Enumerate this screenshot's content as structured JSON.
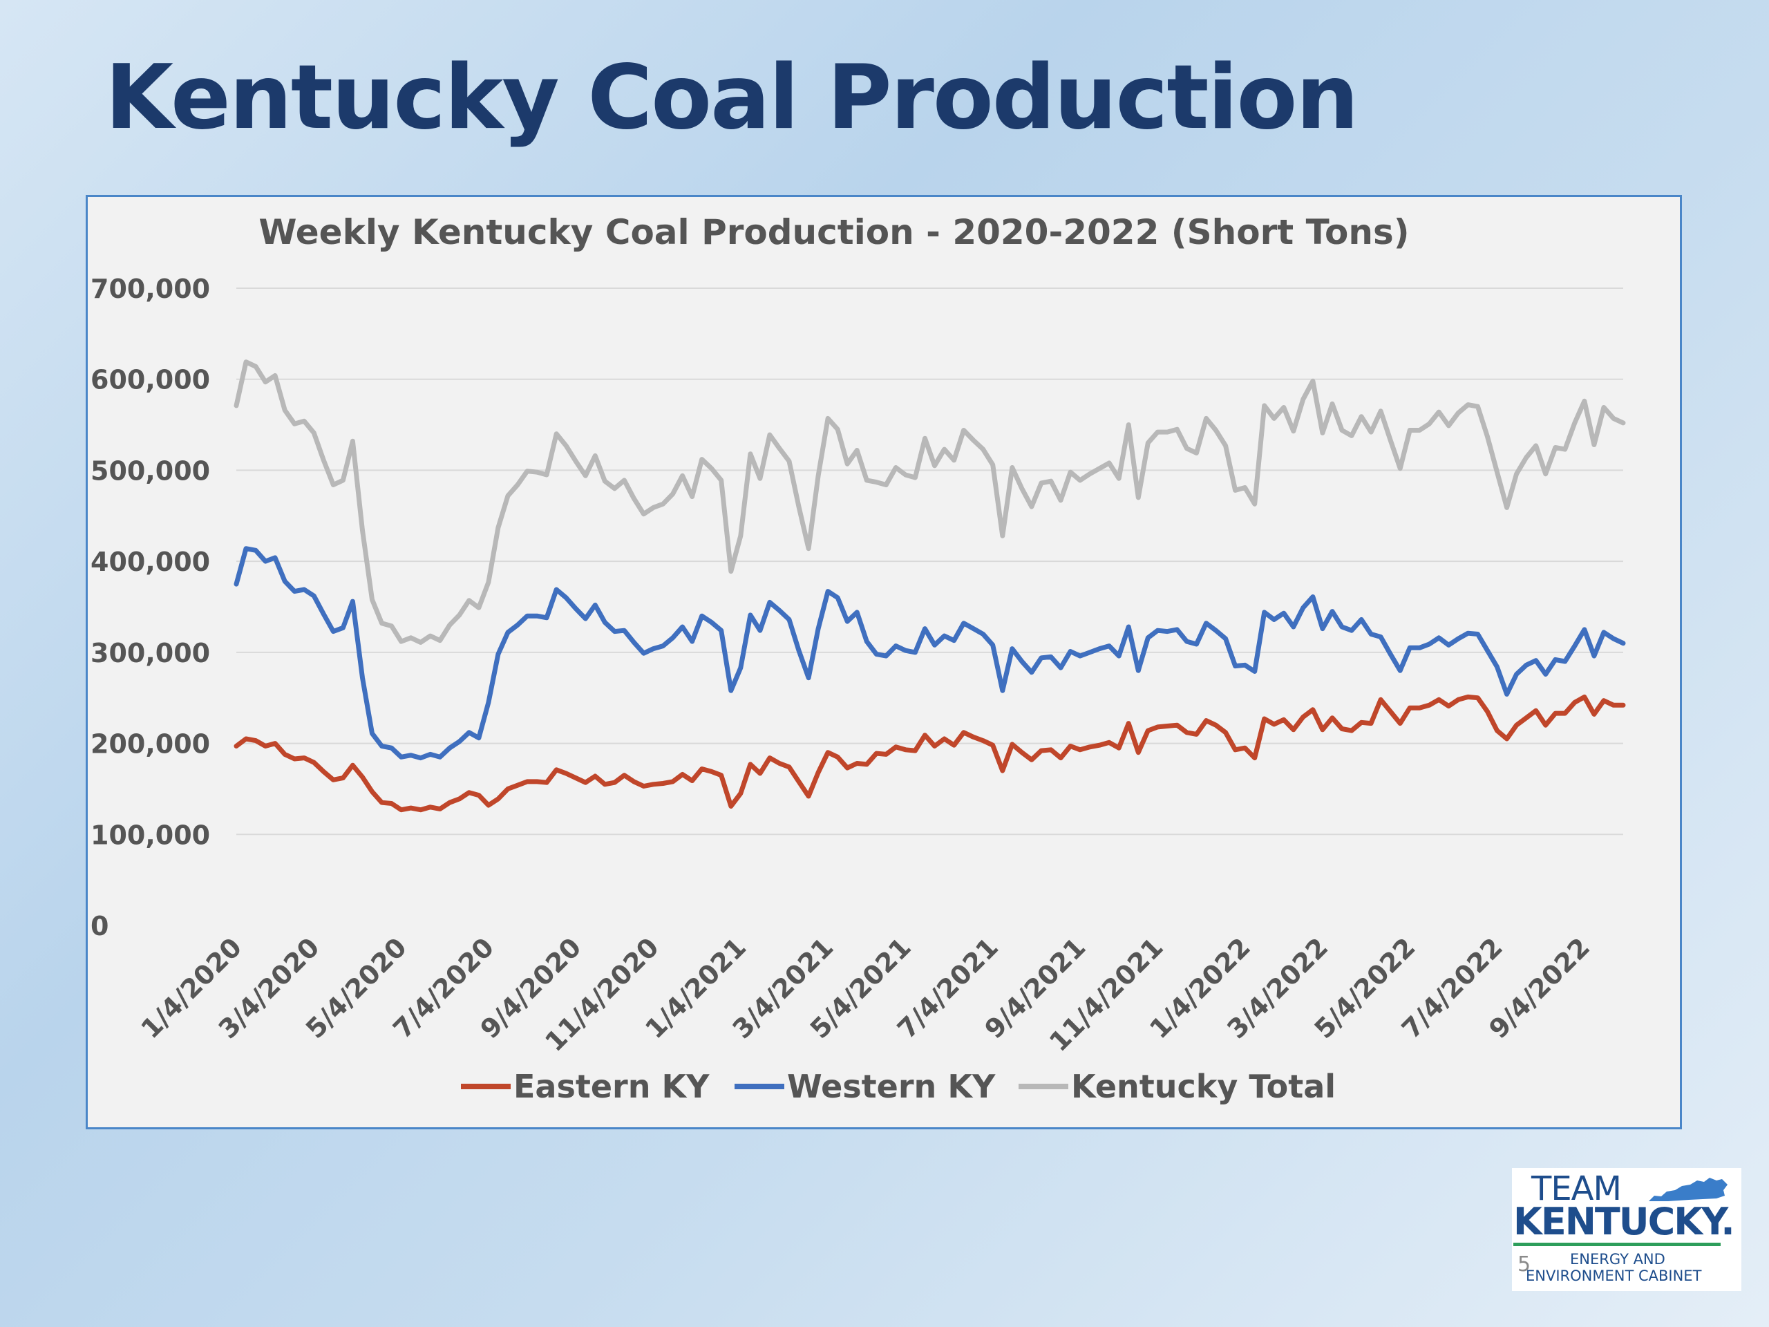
{
  "slide": {
    "title": "Kentucky Coal Production",
    "page_number": "5",
    "logo": {
      "line1": "TEAM",
      "line2": "KENTUCKY.",
      "line3": "ENERGY AND",
      "line4": "ENVIRONMENT CABINET"
    }
  },
  "colors": {
    "eastern": "#c0462a",
    "western": "#3f6fbf",
    "total": "#b8b8b8",
    "grid": "#d9d9d9",
    "frame": "#4a86c8",
    "title": "#1c3a6b"
  },
  "chart_data": {
    "type": "line",
    "title": "Weekly Kentucky Coal Production - 2020-2022 (Short Tons)",
    "ylim": [
      0,
      700000
    ],
    "yticks": [
      0,
      100000,
      200000,
      300000,
      400000,
      500000,
      600000,
      700000
    ],
    "ytick_labels": [
      "0",
      "100,000",
      "200,000",
      "300,000",
      "400,000",
      "500,000",
      "600,000",
      "700,000"
    ],
    "grid": true,
    "legend": "bottom",
    "x_tick_labels": [
      "1/4/2020",
      "3/4/2020",
      "5/4/2020",
      "7/4/2020",
      "9/4/2020",
      "11/4/2020",
      "1/4/2021",
      "3/4/2021",
      "5/4/2021",
      "7/4/2021",
      "9/4/2021",
      "11/4/2021",
      "1/4/2022",
      "3/4/2022",
      "5/4/2022",
      "7/4/2022",
      "9/4/2022"
    ],
    "x_tick_week_index": [
      0,
      8,
      17,
      26,
      35,
      43,
      52,
      61,
      69,
      78,
      87,
      95,
      104,
      112,
      121,
      130,
      139
    ],
    "series": [
      {
        "name": "Eastern KY",
        "values": [
          197000,
          205000,
          203000,
          197000,
          200000,
          188000,
          183000,
          184000,
          179000,
          169000,
          160000,
          162000,
          176000,
          163000,
          147000,
          135000,
          134000,
          127000,
          129000,
          127000,
          130000,
          128000,
          135000,
          139000,
          146000,
          143000,
          132000,
          139000,
          150000,
          154000,
          158000,
          158000,
          157000,
          171000,
          167000,
          162000,
          157000,
          164000,
          155000,
          157000,
          165000,
          158000,
          153000,
          155000,
          156000,
          158000,
          166000,
          159000,
          172000,
          169000,
          165000,
          131000,
          145000,
          177000,
          167000,
          184000,
          178000,
          174000,
          158000,
          142000,
          168000,
          190000,
          185000,
          173000,
          178000,
          177000,
          189000,
          188000,
          196000,
          193000,
          192000,
          209000,
          197000,
          205000,
          198000,
          212000,
          207000,
          203000,
          198000,
          170000,
          199000,
          190000,
          182000,
          192000,
          193000,
          184000,
          197000,
          193000,
          196000,
          198000,
          201000,
          195000,
          222000,
          190000,
          214000,
          218000,
          219000,
          220000,
          212000,
          210000,
          225000,
          220000,
          212000,
          193000,
          195000,
          184000,
          227000,
          221000,
          226000,
          215000,
          229000,
          237000,
          215000,
          228000,
          216000,
          214000,
          223000,
          222000,
          248000,
          235000,
          222000,
          239000,
          239000,
          242000,
          248000,
          241000,
          248000,
          251000,
          250000,
          235000,
          214000,
          205000,
          220000,
          228000,
          236000,
          220000,
          233000,
          233000,
          245000,
          251000,
          232000,
          247000,
          242000,
          242000
        ]
      },
      {
        "name": "Western KY",
        "values": [
          375000,
          414000,
          412000,
          400000,
          404000,
          378000,
          367000,
          369000,
          362000,
          342000,
          323000,
          327000,
          356000,
          272000,
          211000,
          197000,
          195000,
          185000,
          187000,
          184000,
          188000,
          185000,
          195000,
          202000,
          212000,
          206000,
          245000,
          298000,
          322000,
          330000,
          340000,
          340000,
          338000,
          369000,
          360000,
          348000,
          337000,
          352000,
          333000,
          323000,
          324000,
          311000,
          299000,
          304000,
          307000,
          316000,
          328000,
          312000,
          340000,
          333000,
          324000,
          258000,
          283000,
          341000,
          324000,
          355000,
          346000,
          336000,
          302000,
          272000,
          326000,
          367000,
          360000,
          334000,
          344000,
          312000,
          298000,
          296000,
          307000,
          302000,
          300000,
          326000,
          308000,
          318000,
          313000,
          332000,
          326000,
          320000,
          308000,
          258000,
          304000,
          290000,
          278000,
          294000,
          295000,
          283000,
          301000,
          296000,
          300000,
          304000,
          307000,
          296000,
          328000,
          280000,
          316000,
          324000,
          323000,
          325000,
          312000,
          309000,
          332000,
          324000,
          315000,
          285000,
          286000,
          279000,
          344000,
          336000,
          343000,
          328000,
          349000,
          361000,
          326000,
          345000,
          328000,
          324000,
          336000,
          320000,
          317000,
          298000,
          280000,
          305000,
          305000,
          309000,
          316000,
          308000,
          315000,
          321000,
          320000,
          302000,
          284000,
          254000,
          276000,
          286000,
          291000,
          276000,
          292000,
          290000,
          307000,
          325000,
          296000,
          322000,
          315000,
          310000
        ]
      },
      {
        "name": "Kentucky Total",
        "values": [
          571000,
          619000,
          614000,
          597000,
          604000,
          566000,
          551000,
          554000,
          541000,
          511000,
          484000,
          489000,
          532000,
          434000,
          358000,
          332000,
          329000,
          312000,
          316000,
          311000,
          318000,
          313000,
          330000,
          341000,
          357000,
          349000,
          377000,
          437000,
          472000,
          484000,
          499000,
          498000,
          495000,
          540000,
          527000,
          510000,
          494000,
          516000,
          488000,
          480000,
          489000,
          469000,
          452000,
          459000,
          463000,
          474000,
          494000,
          471000,
          512000,
          502000,
          489000,
          389000,
          428000,
          518000,
          491000,
          539000,
          524000,
          510000,
          460000,
          414000,
          494000,
          557000,
          545000,
          507000,
          522000,
          489000,
          487000,
          484000,
          503000,
          495000,
          492000,
          535000,
          505000,
          523000,
          511000,
          544000,
          533000,
          523000,
          506000,
          428000,
          503000,
          480000,
          460000,
          486000,
          488000,
          467000,
          498000,
          489000,
          496000,
          502000,
          508000,
          491000,
          550000,
          470000,
          530000,
          542000,
          542000,
          545000,
          524000,
          519000,
          557000,
          544000,
          527000,
          478000,
          481000,
          463000,
          571000,
          557000,
          569000,
          543000,
          578000,
          598000,
          541000,
          573000,
          544000,
          538000,
          559000,
          542000,
          565000,
          533000,
          502000,
          544000,
          544000,
          551000,
          564000,
          549000,
          563000,
          572000,
          570000,
          537000,
          498000,
          459000,
          496000,
          514000,
          527000,
          496000,
          525000,
          523000,
          552000,
          576000,
          528000,
          569000,
          557000,
          552000
        ]
      }
    ]
  }
}
